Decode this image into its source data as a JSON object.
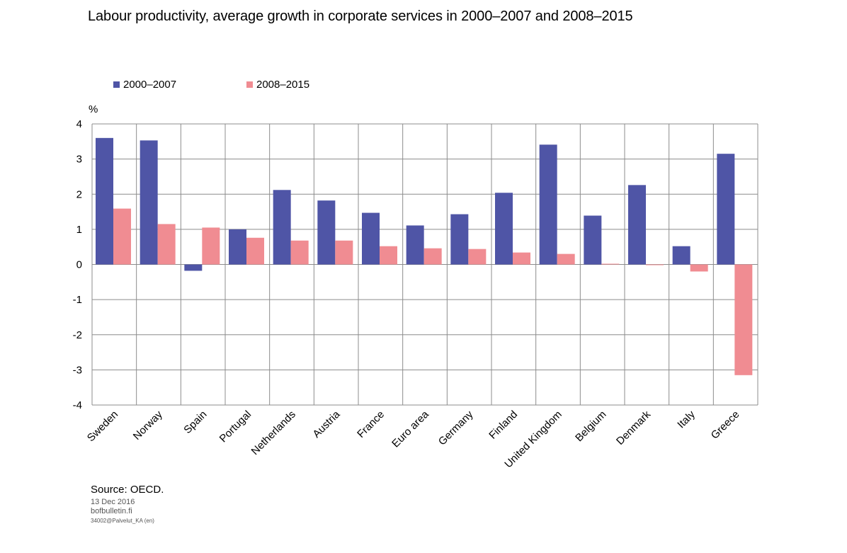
{
  "chart_data": {
    "type": "bar",
    "title": "Labour productivity, average growth in corporate services in 2000–2007 and 2008–2015",
    "ylabel": "%",
    "xlabel": "",
    "ylim": [
      -4,
      4
    ],
    "yticks": [
      4,
      3,
      2,
      1,
      0,
      -1,
      -2,
      -3,
      -4
    ],
    "grid": true,
    "legend_position": "top",
    "categories": [
      "Sweden",
      "Norway",
      "Spain",
      "Portugal",
      "Netherlands",
      "Austria",
      "France",
      "Euro area",
      "Germany",
      "Finland",
      "United Kingdom",
      "Belgium",
      "Denmark",
      "Italy",
      "Greece"
    ],
    "series": [
      {
        "name": "2000–2007",
        "color": "#4f55a6",
        "values": [
          3.6,
          3.53,
          -0.18,
          1.0,
          2.12,
          1.82,
          1.47,
          1.11,
          1.43,
          2.04,
          3.41,
          1.39,
          2.26,
          0.52,
          3.15
        ]
      },
      {
        "name": "2008–2015",
        "color": "#f08c92",
        "values": [
          1.59,
          1.15,
          1.05,
          0.76,
          0.68,
          0.68,
          0.52,
          0.46,
          0.44,
          0.34,
          0.3,
          0.02,
          -0.02,
          -0.2,
          -3.15
        ]
      }
    ]
  },
  "footer": {
    "source": "Source: OECD.",
    "date": "13 Dec 2016",
    "site": "bofbulletin.fi",
    "code": "34002@Palvelut_KA    (en)"
  }
}
